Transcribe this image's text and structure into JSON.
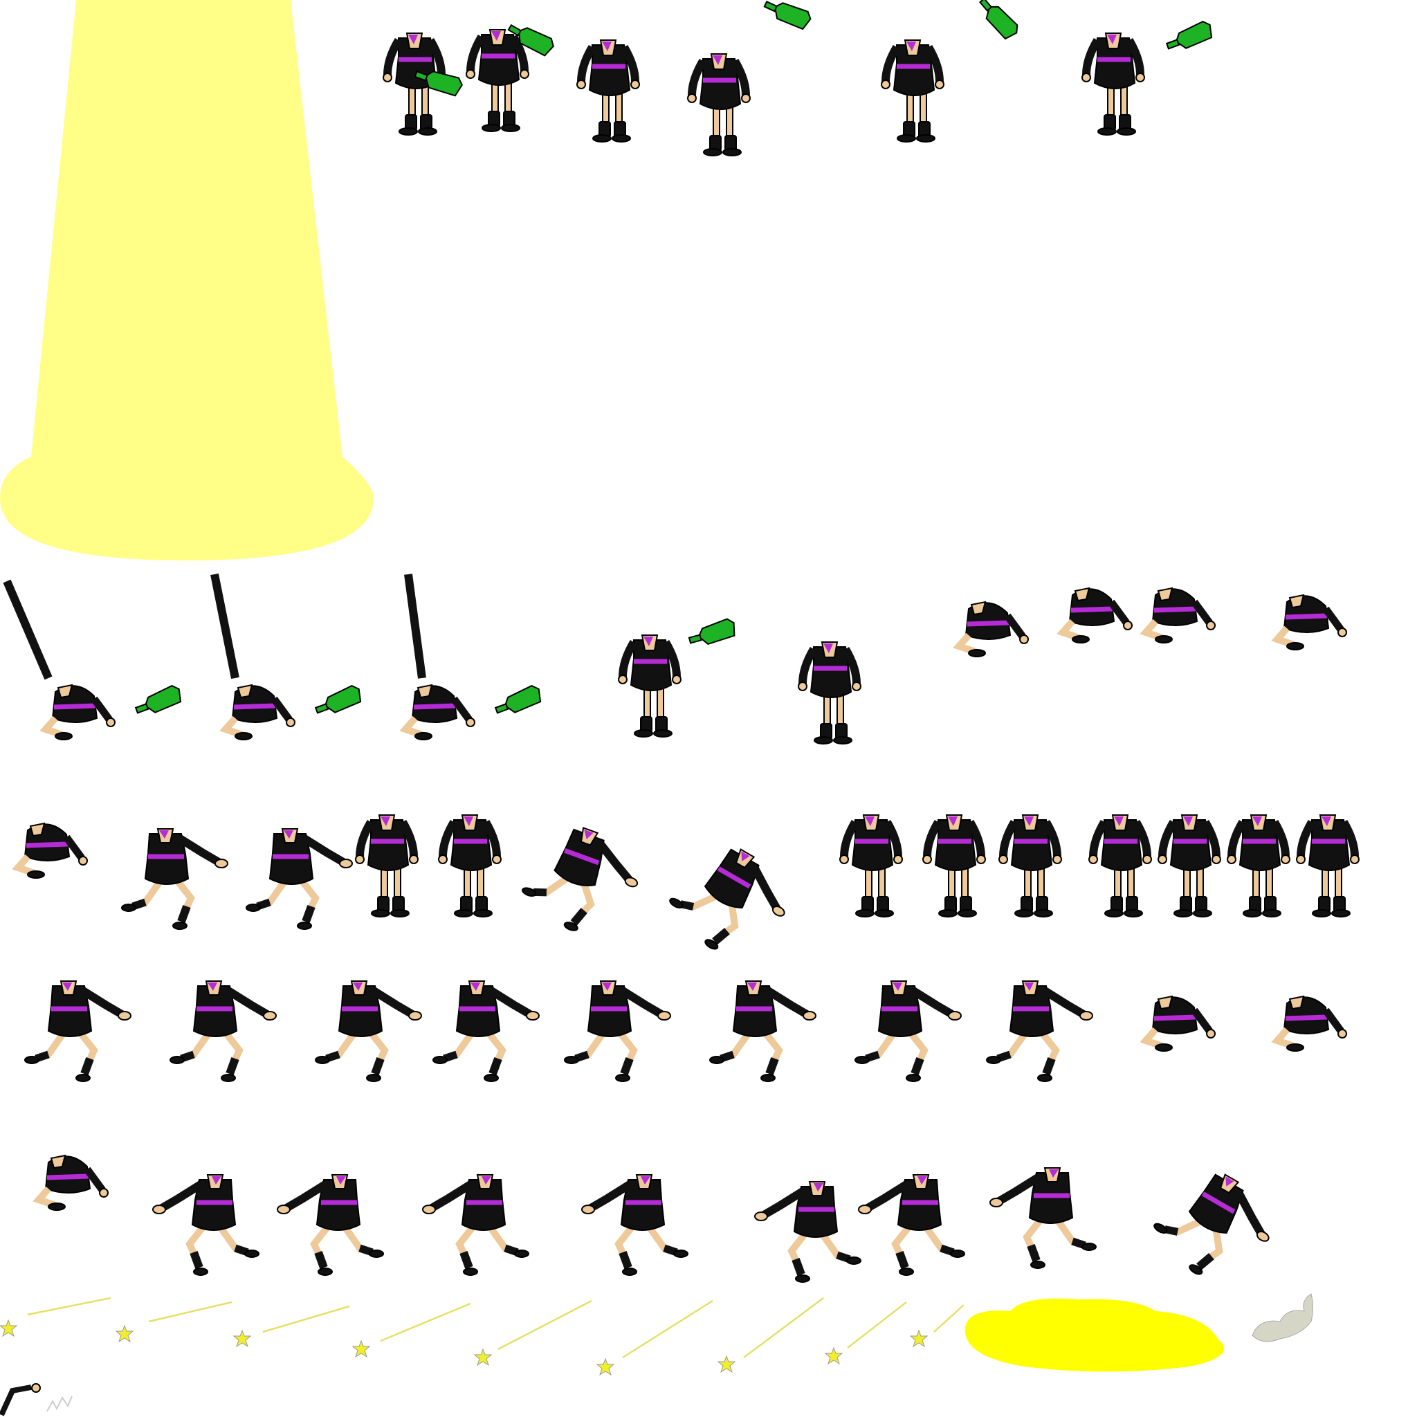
{
  "sheet": {
    "type": "sprite-sheet",
    "palette": {
      "suit": "#111111",
      "skin": "#eec99a",
      "sash": "#b52bd6",
      "bottle": "#1db325",
      "spotlight": "#ffff88",
      "star": "#f1ee2c",
      "puddle": "#ffff00",
      "smoke": "#d6d6c6"
    },
    "rows": [
      {
        "name": "bottle-swing-row",
        "frames": 6,
        "props": "bottle"
      },
      {
        "name": "bottle-pour-row",
        "frames": 5,
        "props": "bottle"
      },
      {
        "name": "collapse-row",
        "frames": 4
      },
      {
        "name": "jump-row",
        "frames": 14
      },
      {
        "name": "run-row",
        "frames": 10
      },
      {
        "name": "dash-row",
        "frames": 9
      },
      {
        "name": "shooting-star-row",
        "frames": 8,
        "effects": [
          "puddle",
          "smoke"
        ]
      }
    ],
    "effects": [
      "spotlight-cone",
      "shooting-stars",
      "yellow-puddle",
      "smoke-wisp",
      "small-crawler"
    ]
  }
}
